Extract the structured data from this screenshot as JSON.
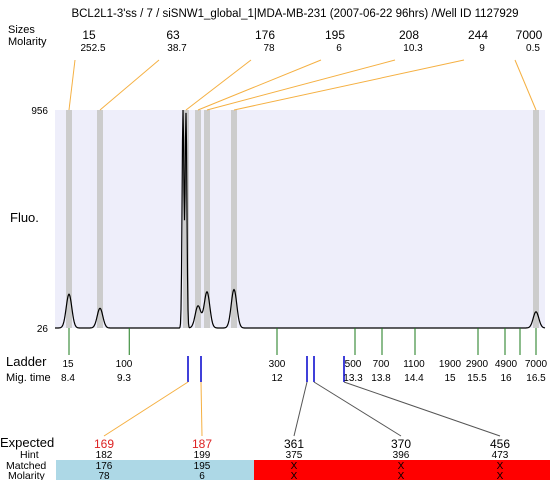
{
  "header": {
    "title": "BCL2L1-3'ss / 7 / siSNW1_global_1|MDA-MB-231 (2007-06-22 96hrs) /Well ID 1127929",
    "sizes_label": "Sizes",
    "molarity_label": "Molarity"
  },
  "labels": {
    "fluo": "Fluo.",
    "ladder": "Ladder",
    "mig_time": "Mig. time",
    "expected": "Expected",
    "hint": "Hint",
    "matched": "Matched",
    "molarity": "Molarity"
  },
  "colors": {
    "plot_bg": "#eeeefa",
    "band": "#cccccc",
    "trace": "#000000",
    "connector": "#f5b042",
    "ladder_tick": "#1a7a1a",
    "marker_tick": "#0000cc",
    "expected_highlight": "#dd2222",
    "matched_good": "#add8e6",
    "matched_bad": "#ff0000"
  },
  "chart_data": {
    "type": "line",
    "title": "BCL2L1-3'ss / 7 / siSNW1_global_1|MDA-MB-231 (2007-06-22 96hrs) /Well ID 1127929",
    "xlabel": "",
    "ylabel": "Fluo.",
    "ylim": [
      26,
      956
    ],
    "y_ticks": [
      "956",
      "26"
    ],
    "peaks": [
      {
        "size": "15",
        "molarity": "252.5"
      },
      {
        "size": "63",
        "molarity": "38.7"
      },
      {
        "size": "176",
        "molarity": "78"
      },
      {
        "size": "195",
        "molarity": "6"
      },
      {
        "size": "208",
        "molarity": "10.3"
      },
      {
        "size": "244",
        "molarity": "9"
      },
      {
        "size": "7000",
        "molarity": "0.5"
      }
    ],
    "trace": {
      "baseline": 26,
      "peaks": [
        {
          "size": 15,
          "height": 170
        },
        {
          "size": 63,
          "height": 110
        },
        {
          "size": 168,
          "height": 956
        },
        {
          "size": 176,
          "height": 940
        },
        {
          "size": 195,
          "height": 120
        },
        {
          "size": 208,
          "height": 180
        },
        {
          "size": 244,
          "height": 190
        },
        {
          "size": 7000,
          "height": 95
        }
      ]
    },
    "ladder": [
      {
        "size": "15",
        "mig_time": "8.4"
      },
      {
        "size": "100",
        "mig_time": "9.3"
      },
      {
        "size": "300",
        "mig_time": "12"
      },
      {
        "size": "500",
        "mig_time": "13.3"
      },
      {
        "size": "700",
        "mig_time": "13.8"
      },
      {
        "size": "1100",
        "mig_time": "14.4"
      },
      {
        "size": "1900",
        "mig_time": "15"
      },
      {
        "size": "2900",
        "mig_time": "15.5"
      },
      {
        "size": "4900",
        "mig_time": "16"
      },
      {
        "size": "7000",
        "mig_time": "16.5"
      }
    ],
    "expected": [
      {
        "size": "169",
        "hint": "182",
        "matched": "176",
        "molarity": "78",
        "highlight": true,
        "status": "matched"
      },
      {
        "size": "187",
        "hint": "199",
        "matched": "195",
        "molarity": "6",
        "highlight": true,
        "status": "matched"
      },
      {
        "size": "361",
        "hint": "375",
        "matched": "X",
        "molarity": "X",
        "highlight": false,
        "status": "unmatched"
      },
      {
        "size": "370",
        "hint": "396",
        "matched": "X",
        "molarity": "X",
        "highlight": false,
        "status": "unmatched"
      },
      {
        "size": "456",
        "hint": "473",
        "matched": "X",
        "molarity": "X",
        "highlight": false,
        "status": "unmatched"
      }
    ]
  }
}
